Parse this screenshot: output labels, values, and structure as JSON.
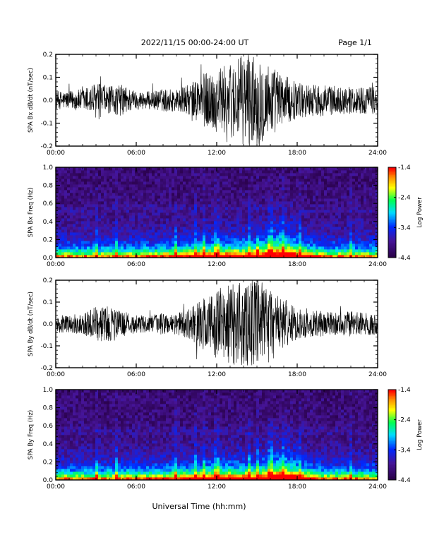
{
  "header": {
    "title": "2022/11/15  00:00-24:00 UT",
    "page": "Page 1/1"
  },
  "chart_data": [
    {
      "type": "line",
      "title": "",
      "ylabel": "SPA Bx dB/dt (nT/sec)",
      "xlim": [
        0,
        24
      ],
      "ylim": [
        -0.2,
        0.2
      ],
      "x_ticks": [
        "00:00",
        "06:00",
        "12:00",
        "18:00",
        "24:00"
      ],
      "y_ticks": [
        "0.2",
        "0.1",
        "0.0",
        "-0.1",
        "-0.2"
      ],
      "series": [
        {
          "x": [
            0,
            1,
            2,
            3,
            4,
            5,
            6,
            7,
            8,
            9,
            10,
            11,
            12,
            13,
            14,
            15,
            16,
            17,
            18,
            19,
            20,
            21,
            22,
            23,
            24
          ],
          "y": [
            0.04,
            0.04,
            0.05,
            0.08,
            0.06,
            0.07,
            0.04,
            0.04,
            0.05,
            0.05,
            0.07,
            0.12,
            0.14,
            0.16,
            0.2,
            0.2,
            0.16,
            0.11,
            0.08,
            0.07,
            0.07,
            0.06,
            0.06,
            0.06,
            0.06
          ]
        }
      ]
    },
    {
      "type": "heatmap",
      "title": "",
      "ylabel": "SPA Bx Freq (Hz)",
      "xlim": [
        0,
        24
      ],
      "ylim": [
        0,
        1.0
      ],
      "x_ticks": [
        "00:00",
        "06:00",
        "12:00",
        "18:00",
        "24:00"
      ],
      "y_ticks": [
        "1.0",
        "0.8",
        "0.6",
        "0.4",
        "0.2",
        "0.0"
      ],
      "colorbar": {
        "label": "Log Power",
        "ticks": [
          "-1.4",
          "-2.4",
          "-3.4",
          "-4.4"
        ],
        "range": [
          -4.4,
          -1.4
        ]
      }
    },
    {
      "type": "line",
      "title": "",
      "ylabel": "SPA By dB/dt (nT/sec)",
      "xlim": [
        0,
        24
      ],
      "ylim": [
        -0.2,
        0.2
      ],
      "x_ticks": [
        "00:00",
        "06:00",
        "12:00",
        "18:00",
        "24:00"
      ],
      "y_ticks": [
        "0.2",
        "0.1",
        "0.0",
        "-0.1",
        "-0.2"
      ],
      "series": [
        {
          "x": [
            0,
            1,
            2,
            3,
            4,
            5,
            6,
            7,
            8,
            9,
            10,
            11,
            12,
            13,
            14,
            15,
            16,
            17,
            18,
            19,
            20,
            21,
            22,
            23,
            24
          ],
          "y": [
            0.04,
            0.04,
            0.05,
            0.08,
            0.08,
            0.06,
            0.04,
            0.04,
            0.05,
            0.05,
            0.07,
            0.12,
            0.16,
            0.18,
            0.2,
            0.2,
            0.18,
            0.11,
            0.07,
            0.06,
            0.06,
            0.05,
            0.06,
            0.05,
            0.05
          ]
        }
      ]
    },
    {
      "type": "heatmap",
      "title": "",
      "ylabel": "SPA By Freq (Hz)",
      "xlim": [
        0,
        24
      ],
      "ylim": [
        0,
        1.0
      ],
      "x_ticks": [
        "00:00",
        "06:00",
        "12:00",
        "18:00",
        "24:00"
      ],
      "y_ticks": [
        "1.0",
        "0.8",
        "0.6",
        "0.4",
        "0.2",
        "0.0"
      ],
      "colorbar": {
        "label": "Log Power",
        "ticks": [
          "-1.4",
          "-2.4",
          "-3.4",
          "-4.4"
        ],
        "range": [
          -4.4,
          -1.4
        ]
      }
    }
  ],
  "footer": {
    "xlabel": "Universal Time (hh:mm)"
  }
}
